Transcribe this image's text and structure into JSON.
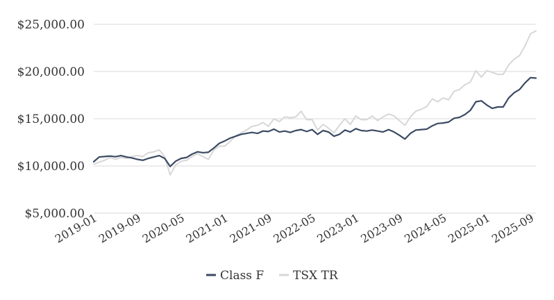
{
  "chart_data": {
    "type": "line",
    "title": "",
    "xlabel": "",
    "ylabel": "",
    "ylim": [
      5000,
      25000
    ],
    "yticks": [
      {
        "value": 5000,
        "label": "$5,000.00"
      },
      {
        "value": 10000,
        "label": "$10,000.00"
      },
      {
        "value": 15000,
        "label": "$15,000.00"
      },
      {
        "value": 20000,
        "label": "$20,000.00"
      },
      {
        "value": 25000,
        "label": "$25,000.00"
      }
    ],
    "xticks": [
      {
        "index": 0,
        "label": "2019-01"
      },
      {
        "index": 8,
        "label": "2019-09"
      },
      {
        "index": 16,
        "label": "2020-05"
      },
      {
        "index": 24,
        "label": "2021-01"
      },
      {
        "index": 32,
        "label": "2021-09"
      },
      {
        "index": 40,
        "label": "2022-05"
      },
      {
        "index": 48,
        "label": "2023-01"
      },
      {
        "index": 56,
        "label": "2023-09"
      },
      {
        "index": 64,
        "label": "2024-05"
      },
      {
        "index": 72,
        "label": "2025-01"
      },
      {
        "index": 80,
        "label": "2025-09"
      }
    ],
    "grid": "horizontal",
    "legend_position": "bottom-center",
    "series": [
      {
        "name": "Class F",
        "color": "#3b4a63",
        "values": [
          10450,
          10950,
          11000,
          11050,
          10980,
          11100,
          10950,
          10850,
          10700,
          10600,
          10800,
          10950,
          11100,
          10800,
          9950,
          10500,
          10800,
          10900,
          11250,
          11500,
          11400,
          11450,
          11900,
          12400,
          12650,
          12950,
          13150,
          13350,
          13450,
          13550,
          13450,
          13700,
          13650,
          13900,
          13600,
          13700,
          13550,
          13750,
          13850,
          13650,
          13850,
          13350,
          13750,
          13600,
          13150,
          13350,
          13800,
          13600,
          13950,
          13750,
          13700,
          13800,
          13700,
          13600,
          13850,
          13600,
          13250,
          12850,
          13450,
          13800,
          13850,
          13900,
          14250,
          14500,
          14550,
          14650,
          15050,
          15150,
          15450,
          15900,
          16800,
          16900,
          16450,
          16100,
          16250,
          16250,
          17200,
          17750,
          18100,
          18800,
          19350,
          19300
        ]
      },
      {
        "name": "TSX TR",
        "color": "#d7d7d7",
        "values": [
          10200,
          10400,
          10600,
          10900,
          10700,
          10900,
          10800,
          11000,
          11100,
          11000,
          11400,
          11500,
          11700,
          11000,
          9050,
          10100,
          10500,
          10600,
          11000,
          11300,
          11000,
          10700,
          11700,
          12100,
          12100,
          12600,
          13200,
          13500,
          13800,
          14200,
          14300,
          14600,
          14200,
          15000,
          14700,
          15200,
          15100,
          15200,
          15800,
          14900,
          14900,
          13800,
          14400,
          14000,
          13500,
          14300,
          15000,
          14400,
          15300,
          14900,
          14900,
          15300,
          14800,
          15200,
          15500,
          15300,
          14800,
          14300,
          15200,
          15800,
          16000,
          16300,
          17100,
          16800,
          17200,
          17000,
          17900,
          18100,
          18600,
          18900,
          20100,
          19400,
          20100,
          19900,
          19700,
          19700,
          20700,
          21300,
          21700,
          22700,
          24000,
          24300
        ]
      }
    ]
  }
}
